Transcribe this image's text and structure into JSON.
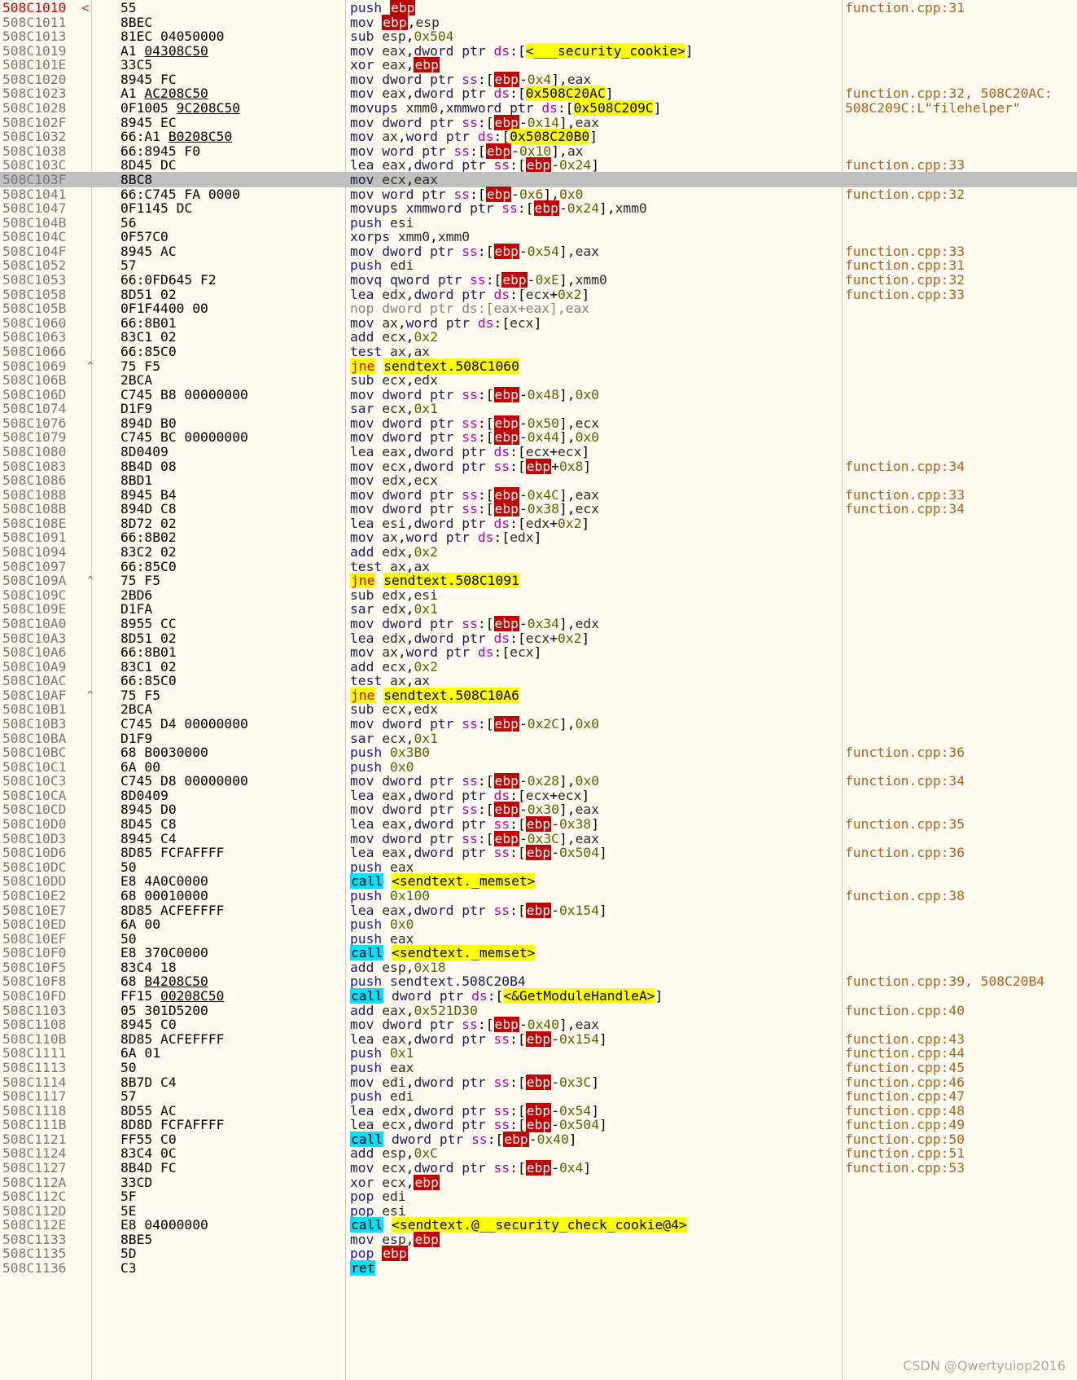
{
  "window": {
    "watermark": "CSDN @Qwertyuiop2016"
  },
  "colors": {
    "background": "#fffbf0",
    "selection": "#c0c0c0",
    "register_ebp": "#c00000",
    "symbol_highlight": "#ffff00",
    "call_highlight": "#00e0ff",
    "comment": "#b0601a"
  },
  "columns": {
    "icons": [
      "breakpoint-arrow-icon",
      "jump-up-arrow-icon"
    ]
  },
  "rows": [
    {
      "addr": "508C1010",
      "arrow": "<",
      "bytes": "55",
      "m": "push",
      "ops": "ebp",
      "cmt": "function.cpp:31",
      "first": true
    },
    {
      "addr": "508C1011",
      "bytes": "8BEC",
      "m": "mov",
      "ops": "ebp,esp"
    },
    {
      "addr": "508C1013",
      "bytes": "81EC 04050000",
      "m": "sub",
      "ops": "esp,0x504"
    },
    {
      "addr": "508C1019",
      "bytes": "A1 04308C50",
      "u": "04308C50",
      "m": "mov",
      "ops": "eax,dword ptr ds:[<___security_cookie>]"
    },
    {
      "addr": "508C101E",
      "bytes": "33C5",
      "m": "xor",
      "ops": "eax,ebp"
    },
    {
      "addr": "508C1020",
      "bytes": "8945 FC",
      "m": "mov",
      "ops": "dword ptr ss:[ebp-0x4],eax"
    },
    {
      "addr": "508C1023",
      "bytes": "A1 AC208C50",
      "u": "AC208C50",
      "m": "mov",
      "ops": "eax,dword ptr ds:[0x508C20AC]",
      "cmt": "function.cpp:32, 508C20AC:"
    },
    {
      "addr": "508C1028",
      "bytes": "0F1005 9C208C50",
      "u": "9C208C50",
      "m": "movups",
      "ops": "xmm0,xmmword ptr ds:[0x508C209C]",
      "cmt": "508C209C:L\"filehelper\""
    },
    {
      "addr": "508C102F",
      "bytes": "8945 EC",
      "m": "mov",
      "ops": "dword ptr ss:[ebp-0x14],eax"
    },
    {
      "addr": "508C1032",
      "bytes": "66:A1 B0208C50",
      "u": "B0208C50",
      "m": "mov",
      "ops": "ax,word ptr ds:[0x508C20B0]"
    },
    {
      "addr": "508C1038",
      "bytes": "66:8945 F0",
      "m": "mov",
      "ops": "word ptr ss:[ebp-0x10],ax"
    },
    {
      "addr": "508C103C",
      "bytes": "8D45 DC",
      "m": "lea",
      "ops": "eax,dword ptr ss:[ebp-0x24]",
      "cmt": "function.cpp:33"
    },
    {
      "addr": "508C103F",
      "bytes": "8BC8",
      "m": "mov",
      "ops": "ecx,eax",
      "sel": true
    },
    {
      "addr": "508C1041",
      "bytes": "66:C745 FA 0000",
      "m": "mov",
      "ops": "word ptr ss:[ebp-0x6],0x0",
      "cmt": "function.cpp:32"
    },
    {
      "addr": "508C1047",
      "bytes": "0F1145 DC",
      "m": "movups",
      "ops": "xmmword ptr ss:[ebp-0x24],xmm0"
    },
    {
      "addr": "508C104B",
      "bytes": "56",
      "m": "push",
      "ops": "esi"
    },
    {
      "addr": "508C104C",
      "bytes": "0F57C0",
      "m": "xorps",
      "ops": "xmm0,xmm0"
    },
    {
      "addr": "508C104F",
      "bytes": "8945 AC",
      "m": "mov",
      "ops": "dword ptr ss:[ebp-0x54],eax",
      "cmt": "function.cpp:33"
    },
    {
      "addr": "508C1052",
      "bytes": "57",
      "m": "push",
      "ops": "edi",
      "cmt": "function.cpp:31"
    },
    {
      "addr": "508C1053",
      "bytes": "66:0FD645 F2",
      "m": "movq",
      "ops": "qword ptr ss:[ebp-0xE],xmm0",
      "cmt": "function.cpp:32"
    },
    {
      "addr": "508C1058",
      "bytes": "8D51 02",
      "m": "lea",
      "ops": "edx,dword ptr ds:[ecx+0x2]",
      "cmt": "function.cpp:33"
    },
    {
      "addr": "508C105B",
      "bytes": "0F1F4400 00",
      "m": "nop",
      "ops": "dword ptr ds:[eax+eax],eax",
      "dim": true
    },
    {
      "addr": "508C1060",
      "bytes": "66:8B01",
      "m": "mov",
      "ops": "ax,word ptr ds:[ecx]"
    },
    {
      "addr": "508C1063",
      "bytes": "83C1 02",
      "m": "add",
      "ops": "ecx,0x2"
    },
    {
      "addr": "508C1066",
      "bytes": "66:85C0",
      "m": "test",
      "ops": "ax,ax"
    },
    {
      "addr": "508C1069",
      "arrow": "^",
      "bytes": "75 F5",
      "m": "jne",
      "ops": "sendtext.508C1060"
    },
    {
      "addr": "508C106B",
      "bytes": "2BCA",
      "m": "sub",
      "ops": "ecx,edx"
    },
    {
      "addr": "508C106D",
      "bytes": "C745 B8 00000000",
      "m": "mov",
      "ops": "dword ptr ss:[ebp-0x48],0x0"
    },
    {
      "addr": "508C1074",
      "bytes": "D1F9",
      "m": "sar",
      "ops": "ecx,0x1"
    },
    {
      "addr": "508C1076",
      "bytes": "894D B0",
      "m": "mov",
      "ops": "dword ptr ss:[ebp-0x50],ecx"
    },
    {
      "addr": "508C1079",
      "bytes": "C745 BC 00000000",
      "m": "mov",
      "ops": "dword ptr ss:[ebp-0x44],0x0"
    },
    {
      "addr": "508C1080",
      "bytes": "8D0409",
      "m": "lea",
      "ops": "eax,dword ptr ds:[ecx+ecx]"
    },
    {
      "addr": "508C1083",
      "bytes": "8B4D 08",
      "m": "mov",
      "ops": "ecx,dword ptr ss:[ebp+0x8]",
      "cmt": "function.cpp:34"
    },
    {
      "addr": "508C1086",
      "bytes": "8BD1",
      "m": "mov",
      "ops": "edx,ecx"
    },
    {
      "addr": "508C1088",
      "bytes": "8945 B4",
      "m": "mov",
      "ops": "dword ptr ss:[ebp-0x4C],eax",
      "cmt": "function.cpp:33"
    },
    {
      "addr": "508C108B",
      "bytes": "894D C8",
      "m": "mov",
      "ops": "dword ptr ss:[ebp-0x38],ecx",
      "cmt": "function.cpp:34"
    },
    {
      "addr": "508C108E",
      "bytes": "8D72 02",
      "m": "lea",
      "ops": "esi,dword ptr ds:[edx+0x2]"
    },
    {
      "addr": "508C1091",
      "bytes": "66:8B02",
      "m": "mov",
      "ops": "ax,word ptr ds:[edx]"
    },
    {
      "addr": "508C1094",
      "bytes": "83C2 02",
      "m": "add",
      "ops": "edx,0x2"
    },
    {
      "addr": "508C1097",
      "bytes": "66:85C0",
      "m": "test",
      "ops": "ax,ax"
    },
    {
      "addr": "508C109A",
      "arrow": "^",
      "bytes": "75 F5",
      "m": "jne",
      "ops": "sendtext.508C1091"
    },
    {
      "addr": "508C109C",
      "bytes": "2BD6",
      "m": "sub",
      "ops": "edx,esi"
    },
    {
      "addr": "508C109E",
      "bytes": "D1FA",
      "m": "sar",
      "ops": "edx,0x1"
    },
    {
      "addr": "508C10A0",
      "bytes": "8955 CC",
      "m": "mov",
      "ops": "dword ptr ss:[ebp-0x34],edx"
    },
    {
      "addr": "508C10A3",
      "bytes": "8D51 02",
      "m": "lea",
      "ops": "edx,dword ptr ds:[ecx+0x2]"
    },
    {
      "addr": "508C10A6",
      "bytes": "66:8B01",
      "m": "mov",
      "ops": "ax,word ptr ds:[ecx]"
    },
    {
      "addr": "508C10A9",
      "bytes": "83C1 02",
      "m": "add",
      "ops": "ecx,0x2"
    },
    {
      "addr": "508C10AC",
      "bytes": "66:85C0",
      "m": "test",
      "ops": "ax,ax"
    },
    {
      "addr": "508C10AF",
      "arrow": "^",
      "bytes": "75 F5",
      "m": "jne",
      "ops": "sendtext.508C10A6"
    },
    {
      "addr": "508C10B1",
      "bytes": "2BCA",
      "m": "sub",
      "ops": "ecx,edx"
    },
    {
      "addr": "508C10B3",
      "bytes": "C745 D4 00000000",
      "m": "mov",
      "ops": "dword ptr ss:[ebp-0x2C],0x0"
    },
    {
      "addr": "508C10BA",
      "bytes": "D1F9",
      "m": "sar",
      "ops": "ecx,0x1"
    },
    {
      "addr": "508C10BC",
      "bytes": "68 B0030000",
      "m": "push",
      "ops": "0x3B0",
      "cmt": "function.cpp:36"
    },
    {
      "addr": "508C10C1",
      "bytes": "6A 00",
      "m": "push",
      "ops": "0x0"
    },
    {
      "addr": "508C10C3",
      "bytes": "C745 D8 00000000",
      "m": "mov",
      "ops": "dword ptr ss:[ebp-0x28],0x0",
      "cmt": "function.cpp:34"
    },
    {
      "addr": "508C10CA",
      "bytes": "8D0409",
      "m": "lea",
      "ops": "eax,dword ptr ds:[ecx+ecx]"
    },
    {
      "addr": "508C10CD",
      "bytes": "8945 D0",
      "m": "mov",
      "ops": "dword ptr ss:[ebp-0x30],eax"
    },
    {
      "addr": "508C10D0",
      "bytes": "8D45 C8",
      "m": "lea",
      "ops": "eax,dword ptr ss:[ebp-0x38]",
      "cmt": "function.cpp:35"
    },
    {
      "addr": "508C10D3",
      "bytes": "8945 C4",
      "m": "mov",
      "ops": "dword ptr ss:[ebp-0x3C],eax"
    },
    {
      "addr": "508C10D6",
      "bytes": "8D85 FCFAFFFF",
      "m": "lea",
      "ops": "eax,dword ptr ss:[ebp-0x504]",
      "cmt": "function.cpp:36"
    },
    {
      "addr": "508C10DC",
      "bytes": "50",
      "m": "push",
      "ops": "eax"
    },
    {
      "addr": "508C10DD",
      "bytes": "E8 4A0C0000",
      "m": "call",
      "ops": "<sendtext._memset>"
    },
    {
      "addr": "508C10E2",
      "bytes": "68 00010000",
      "m": "push",
      "ops": "0x100",
      "cmt": "function.cpp:38"
    },
    {
      "addr": "508C10E7",
      "bytes": "8D85 ACFEFFFF",
      "m": "lea",
      "ops": "eax,dword ptr ss:[ebp-0x154]"
    },
    {
      "addr": "508C10ED",
      "bytes": "6A 00",
      "m": "push",
      "ops": "0x0"
    },
    {
      "addr": "508C10EF",
      "bytes": "50",
      "m": "push",
      "ops": "eax"
    },
    {
      "addr": "508C10F0",
      "bytes": "E8 370C0000",
      "m": "call",
      "ops": "<sendtext._memset>"
    },
    {
      "addr": "508C10F5",
      "bytes": "83C4 18",
      "m": "add",
      "ops": "esp,0x18"
    },
    {
      "addr": "508C10F8",
      "bytes": "68 B4208C50",
      "u": "B4208C50",
      "m": "push",
      "ops": "sendtext.508C20B4",
      "cmt": "function.cpp:39, 508C20B4"
    },
    {
      "addr": "508C10FD",
      "bytes": "FF15 00208C50",
      "u": "00208C50",
      "m": "call",
      "ops": "dword ptr ds:[<&GetModuleHandleA>]"
    },
    {
      "addr": "508C1103",
      "bytes": "05 301D5200",
      "m": "add",
      "ops": "eax,0x521D30",
      "cmt": "function.cpp:40"
    },
    {
      "addr": "508C1108",
      "bytes": "8945 C0",
      "m": "mov",
      "ops": "dword ptr ss:[ebp-0x40],eax"
    },
    {
      "addr": "508C110B",
      "bytes": "8D85 ACFEFFFF",
      "m": "lea",
      "ops": "eax,dword ptr ss:[ebp-0x154]",
      "cmt": "function.cpp:43"
    },
    {
      "addr": "508C1111",
      "bytes": "6A 01",
      "m": "push",
      "ops": "0x1",
      "cmt": "function.cpp:44"
    },
    {
      "addr": "508C1113",
      "bytes": "50",
      "m": "push",
      "ops": "eax",
      "cmt": "function.cpp:45"
    },
    {
      "addr": "508C1114",
      "bytes": "8B7D C4",
      "m": "mov",
      "ops": "edi,dword ptr ss:[ebp-0x3C]",
      "cmt": "function.cpp:46"
    },
    {
      "addr": "508C1117",
      "bytes": "57",
      "m": "push",
      "ops": "edi",
      "cmt": "function.cpp:47"
    },
    {
      "addr": "508C1118",
      "bytes": "8D55 AC",
      "m": "lea",
      "ops": "edx,dword ptr ss:[ebp-0x54]",
      "cmt": "function.cpp:48"
    },
    {
      "addr": "508C111B",
      "bytes": "8D8D FCFAFFFF",
      "m": "lea",
      "ops": "ecx,dword ptr ss:[ebp-0x504]",
      "cmt": "function.cpp:49"
    },
    {
      "addr": "508C1121",
      "bytes": "FF55 C0",
      "m": "call",
      "ops": "dword ptr ss:[ebp-0x40]",
      "cmt": "function.cpp:50"
    },
    {
      "addr": "508C1124",
      "bytes": "83C4 0C",
      "m": "add",
      "ops": "esp,0xC",
      "cmt": "function.cpp:51"
    },
    {
      "addr": "508C1127",
      "bytes": "8B4D FC",
      "m": "mov",
      "ops": "ecx,dword ptr ss:[ebp-0x4]",
      "cmt": "function.cpp:53"
    },
    {
      "addr": "508C112A",
      "bytes": "33CD",
      "m": "xor",
      "ops": "ecx,ebp"
    },
    {
      "addr": "508C112C",
      "bytes": "5F",
      "m": "pop",
      "ops": "edi"
    },
    {
      "addr": "508C112D",
      "bytes": "5E",
      "m": "pop",
      "ops": "esi"
    },
    {
      "addr": "508C112E",
      "bytes": "E8 04000000",
      "m": "call",
      "ops": "<sendtext.@__security_check_cookie@4>"
    },
    {
      "addr": "508C1133",
      "bytes": "8BE5",
      "m": "mov",
      "ops": "esp,ebp"
    },
    {
      "addr": "508C1135",
      "bytes": "5D",
      "m": "pop",
      "ops": "ebp"
    },
    {
      "addr": "508C1136",
      "bytes": "C3",
      "m": "ret",
      "ops": ""
    }
  ]
}
